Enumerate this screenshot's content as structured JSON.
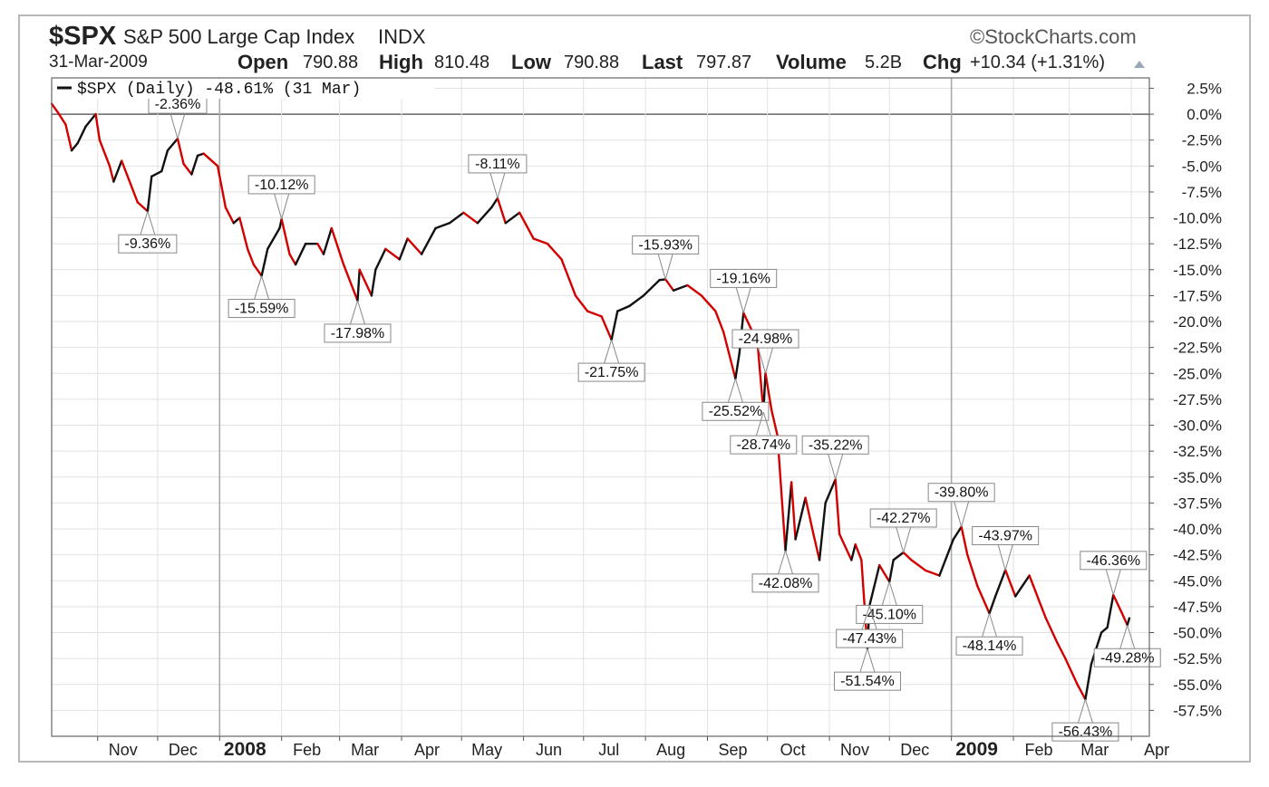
{
  "header": {
    "ticker": "$SPX",
    "index_name": "S&P 500 Large Cap Index",
    "exchange": "INDX",
    "copyright": "©StockCharts.com",
    "date": "31-Mar-2009",
    "open_label": "Open",
    "open_value": "790.88",
    "high_label": "High",
    "high_value": "810.48",
    "low_label": "Low",
    "low_value": "790.88",
    "last_label": "Last",
    "last_value": "797.87",
    "volume_label": "Volume",
    "volume_value": "5.2B",
    "chg_label": "Chg",
    "chg_value": "+10.34 (+1.31%)",
    "chg_icon": "up-triangle-icon"
  },
  "colors": {
    "line_down": "#d40000",
    "line_up": "#111111",
    "grid": "#e2e2e2",
    "zero_line": "#666666"
  },
  "chart_data": {
    "type": "line",
    "legend": "$SPX (Daily) -48.61% (31 Mar)",
    "legend_position": "top-left",
    "grid": true,
    "y_unit": "%",
    "ylim": [
      -60,
      3.5
    ],
    "y_ticks": [
      "2.5%",
      "0.0%",
      "-2.5%",
      "-5.0%",
      "-7.5%",
      "-10.0%",
      "-12.5%",
      "-15.0%",
      "-17.5%",
      "-20.0%",
      "-22.5%",
      "-25.0%",
      "-27.5%",
      "-30.0%",
      "-32.5%",
      "-35.0%",
      "-37.5%",
      "-40.0%",
      "-42.5%",
      "-45.0%",
      "-47.5%",
      "-50.0%",
      "-52.5%",
      "-55.0%",
      "-57.5%"
    ],
    "x_start": "2007-10-09",
    "x_end": "2009-04-10",
    "x_ticks": [
      {
        "label": "Nov",
        "date": "2007-11-01",
        "year": false
      },
      {
        "label": "Dec",
        "date": "2007-12-01",
        "year": false
      },
      {
        "label": "2008",
        "date": "2008-01-01",
        "year": true
      },
      {
        "label": "Feb",
        "date": "2008-02-01",
        "year": false
      },
      {
        "label": "Mar",
        "date": "2008-03-01",
        "year": false
      },
      {
        "label": "Apr",
        "date": "2008-04-01",
        "year": false
      },
      {
        "label": "May",
        "date": "2008-05-01",
        "year": false
      },
      {
        "label": "Jun",
        "date": "2008-06-01",
        "year": false
      },
      {
        "label": "Jul",
        "date": "2008-07-01",
        "year": false
      },
      {
        "label": "Aug",
        "date": "2008-08-01",
        "year": false
      },
      {
        "label": "Sep",
        "date": "2008-09-01",
        "year": false
      },
      {
        "label": "Oct",
        "date": "2008-10-01",
        "year": false
      },
      {
        "label": "Nov",
        "date": "2008-11-01",
        "year": false
      },
      {
        "label": "Dec",
        "date": "2008-12-01",
        "year": false
      },
      {
        "label": "2009",
        "date": "2009-01-01",
        "year": true
      },
      {
        "label": "Feb",
        "date": "2009-02-01",
        "year": false
      },
      {
        "label": "Mar",
        "date": "2009-03-01",
        "year": false
      },
      {
        "label": "Apr",
        "date": "2009-04-01",
        "year": false
      }
    ],
    "series": [
      {
        "points": [
          [
            "2007-10-09",
            1.0
          ],
          [
            "2007-10-12",
            0.2
          ],
          [
            "2007-10-16",
            -1.0
          ],
          [
            "2007-10-19",
            -3.5
          ],
          [
            "2007-10-22",
            -2.8
          ],
          [
            "2007-10-26",
            -1.2
          ],
          [
            "2007-10-31",
            0.0
          ],
          [
            "2007-11-02",
            -2.5
          ],
          [
            "2007-11-07",
            -5.0
          ],
          [
            "2007-11-09",
            -6.5
          ],
          [
            "2007-11-13",
            -4.5
          ],
          [
            "2007-11-16",
            -6.0
          ],
          [
            "2007-11-21",
            -8.5
          ],
          [
            "2007-11-26",
            -9.36
          ],
          [
            "2007-11-28",
            -6.0
          ],
          [
            "2007-12-03",
            -5.5
          ],
          [
            "2007-12-06",
            -3.5
          ],
          [
            "2007-12-11",
            -2.36
          ],
          [
            "2007-12-14",
            -4.8
          ],
          [
            "2007-12-18",
            -5.8
          ],
          [
            "2007-12-21",
            -4.0
          ],
          [
            "2007-12-24",
            -3.8
          ],
          [
            "2007-12-31",
            -5.0
          ],
          [
            "2008-01-04",
            -9.0
          ],
          [
            "2008-01-08",
            -10.5
          ],
          [
            "2008-01-11",
            -10.0
          ],
          [
            "2008-01-15",
            -13.0
          ],
          [
            "2008-01-18",
            -14.5
          ],
          [
            "2008-01-22",
            -15.59
          ],
          [
            "2008-01-25",
            -13.0
          ],
          [
            "2008-01-31",
            -11.0
          ],
          [
            "2008-02-01",
            -10.12
          ],
          [
            "2008-02-05",
            -13.5
          ],
          [
            "2008-02-08",
            -14.5
          ],
          [
            "2008-02-13",
            -12.5
          ],
          [
            "2008-02-19",
            -12.5
          ],
          [
            "2008-02-22",
            -13.5
          ],
          [
            "2008-02-26",
            -11.0
          ],
          [
            "2008-03-03",
            -14.5
          ],
          [
            "2008-03-07",
            -16.5
          ],
          [
            "2008-03-10",
            -17.98
          ],
          [
            "2008-03-11",
            -15.0
          ],
          [
            "2008-03-17",
            -17.5
          ],
          [
            "2008-03-19",
            -15.0
          ],
          [
            "2008-03-24",
            -13.0
          ],
          [
            "2008-03-31",
            -14.0
          ],
          [
            "2008-04-04",
            -12.0
          ],
          [
            "2008-04-11",
            -13.5
          ],
          [
            "2008-04-18",
            -11.0
          ],
          [
            "2008-04-25",
            -10.5
          ],
          [
            "2008-05-02",
            -9.5
          ],
          [
            "2008-05-09",
            -10.5
          ],
          [
            "2008-05-16",
            -9.0
          ],
          [
            "2008-05-19",
            -8.11
          ],
          [
            "2008-05-23",
            -10.5
          ],
          [
            "2008-05-30",
            -9.5
          ],
          [
            "2008-06-06",
            -12.0
          ],
          [
            "2008-06-13",
            -12.5
          ],
          [
            "2008-06-20",
            -14.0
          ],
          [
            "2008-06-27",
            -17.5
          ],
          [
            "2008-07-03",
            -19.0
          ],
          [
            "2008-07-10",
            -19.5
          ],
          [
            "2008-07-15",
            -21.75
          ],
          [
            "2008-07-18",
            -19.0
          ],
          [
            "2008-07-24",
            -18.5
          ],
          [
            "2008-07-31",
            -17.5
          ],
          [
            "2008-08-08",
            -16.0
          ],
          [
            "2008-08-11",
            -15.93
          ],
          [
            "2008-08-15",
            -17.0
          ],
          [
            "2008-08-22",
            -16.5
          ],
          [
            "2008-08-29",
            -17.5
          ],
          [
            "2008-09-05",
            -19.0
          ],
          [
            "2008-09-09",
            -21.0
          ],
          [
            "2008-09-15",
            -25.52
          ],
          [
            "2008-09-17",
            -23.0
          ],
          [
            "2008-09-19",
            -19.16
          ],
          [
            "2008-09-26",
            -22.0
          ],
          [
            "2008-09-29",
            -28.74
          ],
          [
            "2008-09-30",
            -24.98
          ],
          [
            "2008-10-03",
            -28.5
          ],
          [
            "2008-10-06",
            -31.0
          ],
          [
            "2008-10-10",
            -42.08
          ],
          [
            "2008-10-13",
            -35.5
          ],
          [
            "2008-10-15",
            -41.0
          ],
          [
            "2008-10-20",
            -37.0
          ],
          [
            "2008-10-24",
            -40.5
          ],
          [
            "2008-10-27",
            -43.0
          ],
          [
            "2008-10-30",
            -37.5
          ],
          [
            "2008-11-04",
            -35.22
          ],
          [
            "2008-11-06",
            -40.5
          ],
          [
            "2008-11-12",
            -43.0
          ],
          [
            "2008-11-14",
            -41.5
          ],
          [
            "2008-11-17",
            -43.0
          ],
          [
            "2008-11-20",
            -51.54
          ],
          [
            "2008-11-21",
            -47.43
          ],
          [
            "2008-11-26",
            -43.5
          ],
          [
            "2008-12-01",
            -45.1
          ],
          [
            "2008-12-03",
            -43.0
          ],
          [
            "2008-12-08",
            -42.27
          ],
          [
            "2008-12-12",
            -43.0
          ],
          [
            "2008-12-19",
            -44.0
          ],
          [
            "2008-12-26",
            -44.5
          ],
          [
            "2009-01-02",
            -41.0
          ],
          [
            "2009-01-06",
            -39.8
          ],
          [
            "2009-01-09",
            -42.5
          ],
          [
            "2009-01-14",
            -45.5
          ],
          [
            "2009-01-20",
            -48.14
          ],
          [
            "2009-01-23",
            -46.5
          ],
          [
            "2009-01-28",
            -43.97
          ],
          [
            "2009-02-02",
            -46.5
          ],
          [
            "2009-02-09",
            -44.5
          ],
          [
            "2009-02-12",
            -46.0
          ],
          [
            "2009-02-17",
            -48.5
          ],
          [
            "2009-02-23",
            -51.0
          ],
          [
            "2009-02-27",
            -52.5
          ],
          [
            "2009-03-05",
            -55.0
          ],
          [
            "2009-03-09",
            -56.43
          ],
          [
            "2009-03-12",
            -53.0
          ],
          [
            "2009-03-17",
            -50.0
          ],
          [
            "2009-03-20",
            -49.5
          ],
          [
            "2009-03-23",
            -46.36
          ],
          [
            "2009-03-27",
            -48.0
          ],
          [
            "2009-03-30",
            -49.28
          ],
          [
            "2009-03-31",
            -48.61
          ]
        ]
      }
    ],
    "annotations": [
      {
        "text": "-2.36%",
        "date": "2007-12-11",
        "value": -2.36,
        "side": "above"
      },
      {
        "text": "-9.36%",
        "date": "2007-11-26",
        "value": -9.36,
        "side": "below"
      },
      {
        "text": "-10.12%",
        "date": "2008-02-01",
        "value": -10.12,
        "side": "above"
      },
      {
        "text": "-15.59%",
        "date": "2008-01-22",
        "value": -15.59,
        "side": "below"
      },
      {
        "text": "-17.98%",
        "date": "2008-03-10",
        "value": -17.98,
        "side": "below"
      },
      {
        "text": "-8.11%",
        "date": "2008-05-19",
        "value": -8.11,
        "side": "above"
      },
      {
        "text": "-15.93%",
        "date": "2008-08-11",
        "value": -15.93,
        "side": "above"
      },
      {
        "text": "-21.75%",
        "date": "2008-07-15",
        "value": -21.75,
        "side": "below"
      },
      {
        "text": "-19.16%",
        "date": "2008-09-19",
        "value": -19.16,
        "side": "above"
      },
      {
        "text": "-24.98%",
        "date": "2008-09-30",
        "value": -24.98,
        "side": "above"
      },
      {
        "text": "-25.52%",
        "date": "2008-09-15",
        "value": -25.52,
        "side": "below"
      },
      {
        "text": "-28.74%",
        "date": "2008-09-29",
        "value": -28.74,
        "side": "below"
      },
      {
        "text": "-35.22%",
        "date": "2008-11-04",
        "value": -35.22,
        "side": "above"
      },
      {
        "text": "-42.08%",
        "date": "2008-10-10",
        "value": -42.08,
        "side": "below"
      },
      {
        "text": "-42.27%",
        "date": "2008-12-08",
        "value": -42.27,
        "side": "above"
      },
      {
        "text": "-45.10%",
        "date": "2008-12-01",
        "value": -45.1,
        "side": "below"
      },
      {
        "text": "-47.43%",
        "date": "2008-11-21",
        "value": -47.43,
        "side": "below"
      },
      {
        "text": "-51.54%",
        "date": "2008-11-20",
        "value": -51.54,
        "side": "below"
      },
      {
        "text": "-39.80%",
        "date": "2009-01-06",
        "value": -39.8,
        "side": "above"
      },
      {
        "text": "-43.97%",
        "date": "2009-01-28",
        "value": -43.97,
        "side": "above"
      },
      {
        "text": "-48.14%",
        "date": "2009-01-20",
        "value": -48.14,
        "side": "below"
      },
      {
        "text": "-46.36%",
        "date": "2009-03-23",
        "value": -46.36,
        "side": "above"
      },
      {
        "text": "-49.28%",
        "date": "2009-03-30",
        "value": -49.28,
        "side": "below"
      },
      {
        "text": "-56.43%",
        "date": "2009-03-09",
        "value": -56.43,
        "side": "below"
      }
    ]
  }
}
